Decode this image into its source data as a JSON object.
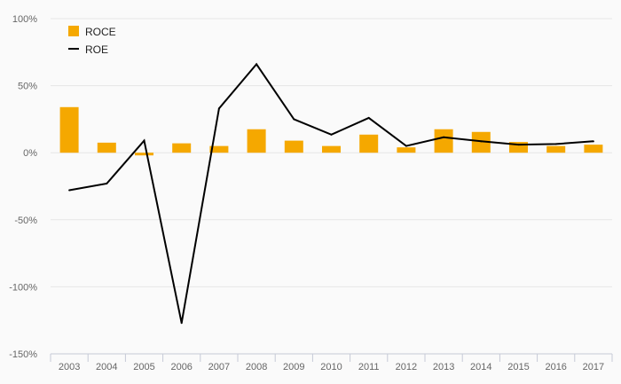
{
  "chart_data": {
    "type": "bar",
    "title": "",
    "xlabel": "",
    "ylabel": "",
    "categories": [
      "2003",
      "2004",
      "2005",
      "2006",
      "2007",
      "2008",
      "2009",
      "2010",
      "2011",
      "2012",
      "2013",
      "2014",
      "2015",
      "2016",
      "2017"
    ],
    "series": [
      {
        "name": "ROCE",
        "type": "bar",
        "color": "#f5a800",
        "values": [
          34,
          7.5,
          -2,
          7,
          5,
          17.5,
          9,
          5,
          13.5,
          4,
          17.5,
          15.5,
          8,
          5,
          6
        ]
      },
      {
        "name": "ROE",
        "type": "line",
        "color": "#000000",
        "values": [
          -28,
          -23,
          9,
          -127,
          33,
          66,
          25,
          13.5,
          26,
          5,
          11.5,
          8.5,
          6,
          6.5,
          8.5
        ]
      }
    ],
    "ylim": [
      -150,
      100
    ],
    "yticks": [
      {
        "value": 100,
        "label": "100%"
      },
      {
        "value": 50,
        "label": "50%"
      },
      {
        "value": 0,
        "label": "0%"
      },
      {
        "value": -50,
        "label": "-50%"
      },
      {
        "value": -100,
        "label": "-100%"
      },
      {
        "value": -150,
        "label": "-150%"
      }
    ],
    "grid": true,
    "legend": "top-left"
  }
}
